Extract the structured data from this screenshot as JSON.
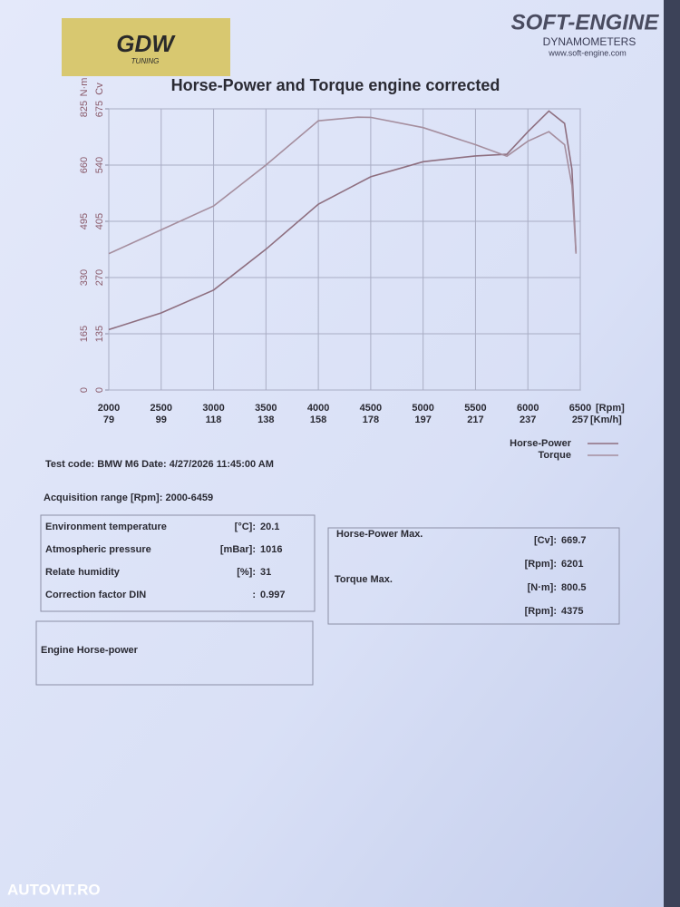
{
  "header": {
    "brand_logo": "GDW",
    "brand_sub": "TUNING",
    "maker": "SOFT-ENGINE",
    "maker_sub": "DYNAMOMETERS",
    "website": "www.soft-engine.com"
  },
  "chart_data": {
    "type": "line",
    "title": "Horse-Power and Torque engine corrected",
    "xlim": [
      2000,
      6500
    ],
    "xticks": [
      2000,
      2500,
      3000,
      3500,
      4000,
      4500,
      5000,
      5500,
      6000,
      6500
    ],
    "x_unit": "[Rpm]",
    "speed_ticks": [
      79,
      99,
      118,
      138,
      158,
      178,
      197,
      217,
      237,
      257
    ],
    "speed_unit": "[Km/h]",
    "ylim": [
      0,
      675
    ],
    "yticks": [
      0,
      135,
      270,
      405,
      540,
      675
    ],
    "y_unit": "Cv",
    "y2lim": [
      0,
      825
    ],
    "y2ticks": [
      0,
      165,
      330,
      495,
      660,
      825
    ],
    "y2_unit": "N·m",
    "grid": true,
    "series": [
      {
        "name": "Horse-Power",
        "color": "#8e6f80",
        "x": [
          2000,
          2500,
          3000,
          3500,
          4000,
          4500,
          5000,
          5500,
          5800,
          6000,
          6201,
          6350,
          6420,
          6459
        ],
        "values": [
          145,
          185,
          240,
          338,
          446,
          512,
          548,
          562,
          566,
          620,
          669.7,
          640,
          530,
          330
        ]
      },
      {
        "name": "Torque",
        "color": "#a58e9e",
        "axis": "y2",
        "x": [
          2000,
          2500,
          3000,
          3500,
          4000,
          4375,
          4500,
          5000,
          5500,
          5800,
          6000,
          6201,
          6350,
          6420,
          6459
        ],
        "values": [
          400,
          470,
          540,
          660,
          790,
          800.5,
          800,
          770,
          720,
          686,
          730,
          758,
          720,
          600,
          400
        ]
      }
    ]
  },
  "test": {
    "code_label": "Test code:",
    "code": "BMW M6",
    "date_label": "Date:",
    "date": "4/27/2026 11:45:00 AM",
    "range_label": "Acquisition range [Rpm]:",
    "range": "2000-6459"
  },
  "environment": [
    {
      "label": "Environment temperature",
      "unit": "[°C]:",
      "value": "20.1"
    },
    {
      "label": "Atmospheric pressure",
      "unit": "[mBar]:",
      "value": "1016"
    },
    {
      "label": "Relate humidity",
      "unit": "[%]:",
      "value": "31"
    },
    {
      "label": "Correction factor DIN",
      "unit": ":",
      "value": "0.997"
    }
  ],
  "maxima": {
    "hp_label": "Horse-Power Max.",
    "hp": [
      {
        "unit": "[Cv]:",
        "value": "669.7"
      },
      {
        "unit": "[Rpm]:",
        "value": "6201"
      }
    ],
    "torque_label": "Torque Max.",
    "torque": [
      {
        "unit": "[N·m]:",
        "value": "800.5"
      },
      {
        "unit": "[Rpm]:",
        "value": "4375"
      }
    ]
  },
  "notes_title": "Engine Horse-power",
  "watermark": "AUTOVIT.RO"
}
